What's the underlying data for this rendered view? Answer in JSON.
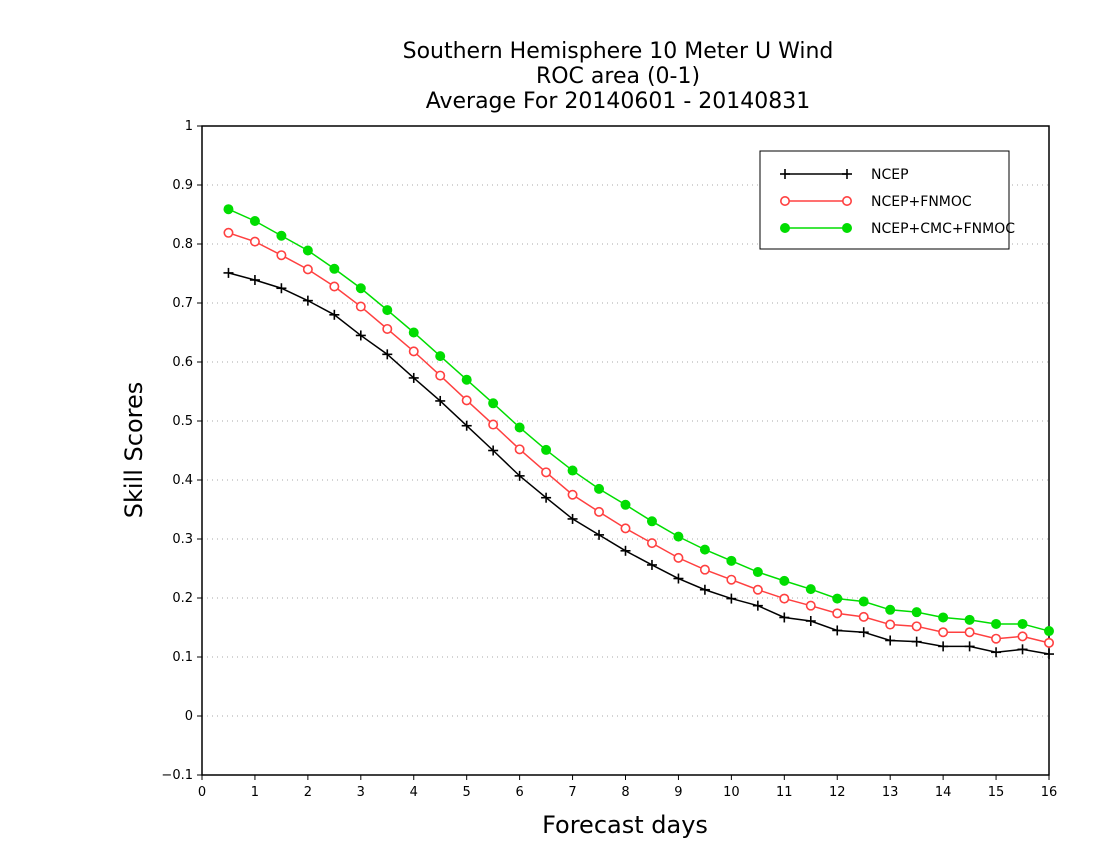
{
  "chart_data": {
    "type": "line",
    "title": [
      "Southern Hemisphere 10 Meter U Wind",
      "ROC area (0-1)",
      "Average For 20140601 - 20140831"
    ],
    "xlabel": "Forecast days",
    "ylabel": "Skill Scores",
    "xlim": [
      0,
      16
    ],
    "ylim": [
      -0.1,
      1
    ],
    "xticks": [
      "0",
      "1",
      "2",
      "3",
      "4",
      "5",
      "6",
      "7",
      "8",
      "9",
      "10",
      "11",
      "12",
      "13",
      "14",
      "15",
      "16"
    ],
    "yticks": [
      "−0.1",
      "0",
      "0.1",
      "0.2",
      "0.3",
      "0.4",
      "0.5",
      "0.6",
      "0.7",
      "0.8",
      "0.9",
      "1"
    ],
    "grid": "horizontal dotted",
    "legend_position": "top-right",
    "x": [
      0.5,
      1,
      1.5,
      2,
      2.5,
      3,
      3.5,
      4,
      4.5,
      5,
      5.5,
      6,
      6.5,
      7,
      7.5,
      8,
      8.5,
      9,
      9.5,
      10,
      10.5,
      11,
      11.5,
      12,
      12.5,
      13,
      13.5,
      14,
      14.5,
      15,
      15.5,
      16
    ],
    "series": [
      {
        "name": "NCEP",
        "color": "#000000",
        "marker": "plus",
        "values": [
          0.751,
          0.739,
          0.725,
          0.704,
          0.68,
          0.645,
          0.613,
          0.573,
          0.534,
          0.492,
          0.45,
          0.407,
          0.37,
          0.334,
          0.307,
          0.28,
          0.256,
          0.233,
          0.214,
          0.199,
          0.187,
          0.167,
          0.161,
          0.145,
          0.142,
          0.128,
          0.126,
          0.118,
          0.118,
          0.108,
          0.113,
          0.105
        ]
      },
      {
        "name": "NCEP+FNMOC",
        "color": "#ff4040",
        "marker": "open-circle",
        "values": [
          0.819,
          0.804,
          0.781,
          0.757,
          0.728,
          0.694,
          0.656,
          0.618,
          0.577,
          0.535,
          0.494,
          0.452,
          0.413,
          0.375,
          0.346,
          0.318,
          0.293,
          0.268,
          0.248,
          0.231,
          0.214,
          0.199,
          0.187,
          0.174,
          0.168,
          0.155,
          0.152,
          0.142,
          0.142,
          0.131,
          0.135,
          0.124
        ]
      },
      {
        "name": "NCEP+CMC+FNMOC",
        "color": "#00dd00",
        "marker": "filled-circle",
        "values": [
          0.859,
          0.839,
          0.814,
          0.789,
          0.758,
          0.725,
          0.688,
          0.65,
          0.61,
          0.57,
          0.53,
          0.489,
          0.451,
          0.416,
          0.385,
          0.358,
          0.33,
          0.304,
          0.282,
          0.263,
          0.244,
          0.229,
          0.215,
          0.199,
          0.194,
          0.18,
          0.176,
          0.167,
          0.163,
          0.156,
          0.156,
          0.144
        ]
      }
    ]
  }
}
